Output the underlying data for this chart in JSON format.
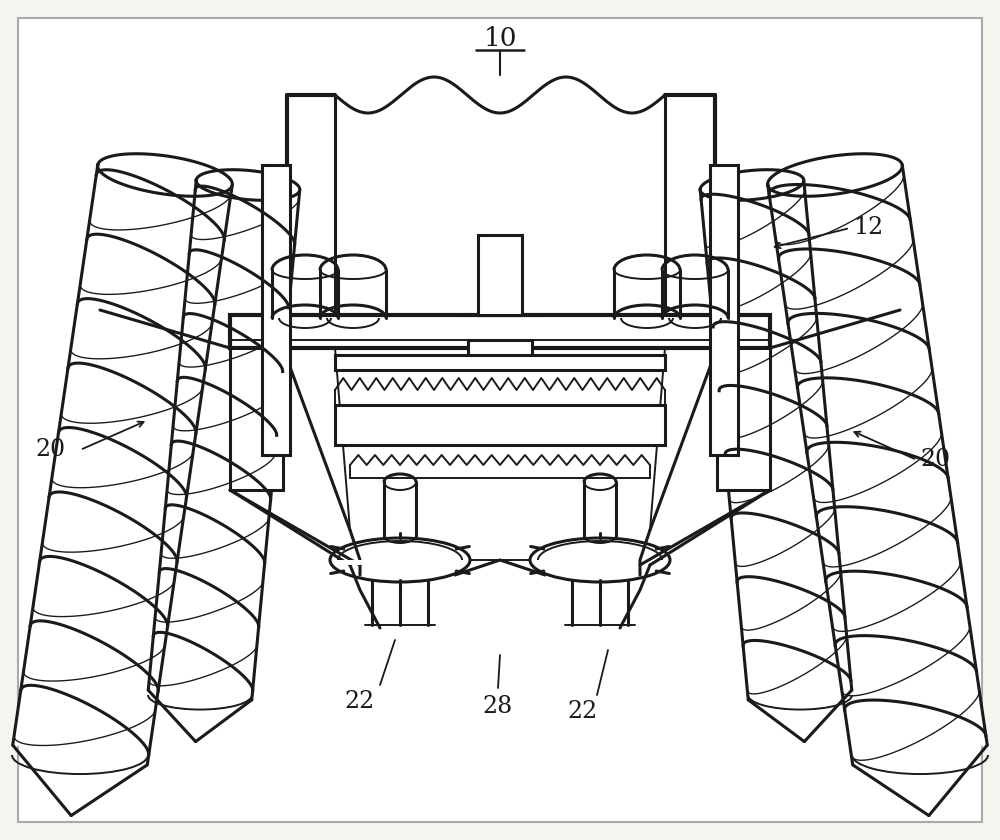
{
  "bg_color": "#ffffff",
  "line_color": "#1a1a1a",
  "lw": 2.2,
  "lw_thin": 1.4,
  "lw_thick": 3.0,
  "label_10": "10",
  "label_12": "12",
  "label_20": "20",
  "label_22": "22",
  "label_28": "28",
  "font_size": 17,
  "fig_width": 10.0,
  "fig_height": 8.4,
  "dpi": 100
}
